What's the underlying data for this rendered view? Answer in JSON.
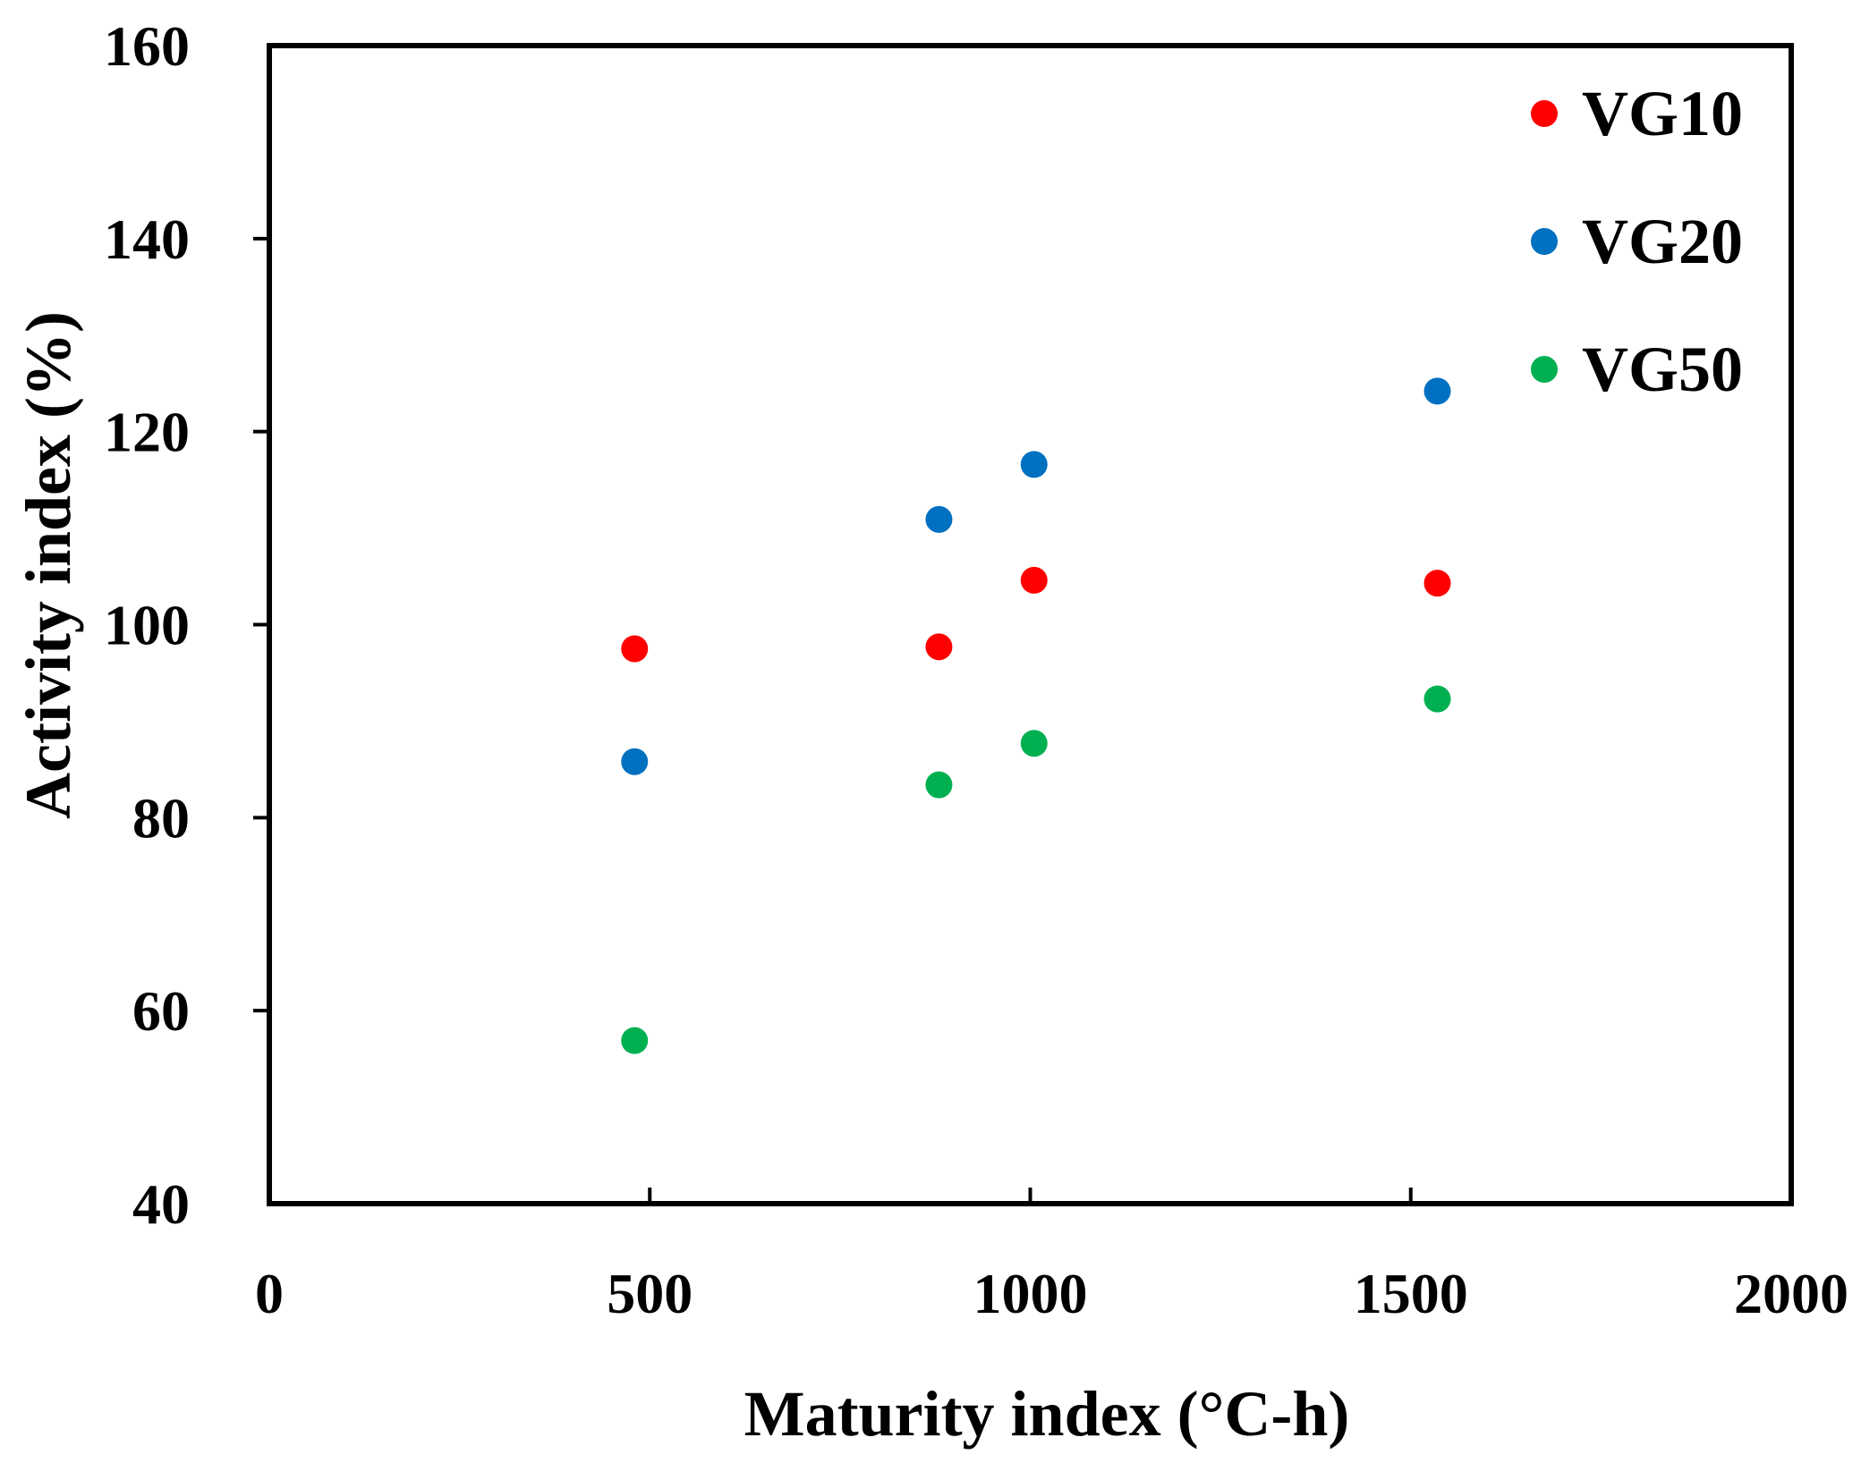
{
  "chart_data": {
    "type": "scatter",
    "xlabel": "Maturity index  (°C-h)",
    "ylabel": "Activity index (%)",
    "xlim": [
      0,
      2000
    ],
    "ylim": [
      40,
      160
    ],
    "xticks": [
      0,
      500,
      1000,
      1500,
      2000
    ],
    "yticks": [
      40,
      60,
      80,
      100,
      120,
      140,
      160
    ],
    "grid": false,
    "legend": "top-right",
    "series": [
      {
        "name": "VG10",
        "color": "#ff0000",
        "points": [
          {
            "x": 480,
            "y": 97.5
          },
          {
            "x": 880,
            "y": 97.7
          },
          {
            "x": 1005,
            "y": 104.6
          },
          {
            "x": 1535,
            "y": 104.3
          }
        ]
      },
      {
        "name": "VG20",
        "color": "#0070c0",
        "points": [
          {
            "x": 480,
            "y": 85.8
          },
          {
            "x": 880,
            "y": 110.9
          },
          {
            "x": 1005,
            "y": 116.6
          },
          {
            "x": 1535,
            "y": 124.2
          }
        ]
      },
      {
        "name": "VG50",
        "color": "#00b050",
        "points": [
          {
            "x": 480,
            "y": 56.9
          },
          {
            "x": 880,
            "y": 83.4
          },
          {
            "x": 1005,
            "y": 87.7
          },
          {
            "x": 1535,
            "y": 92.3
          }
        ]
      }
    ]
  }
}
